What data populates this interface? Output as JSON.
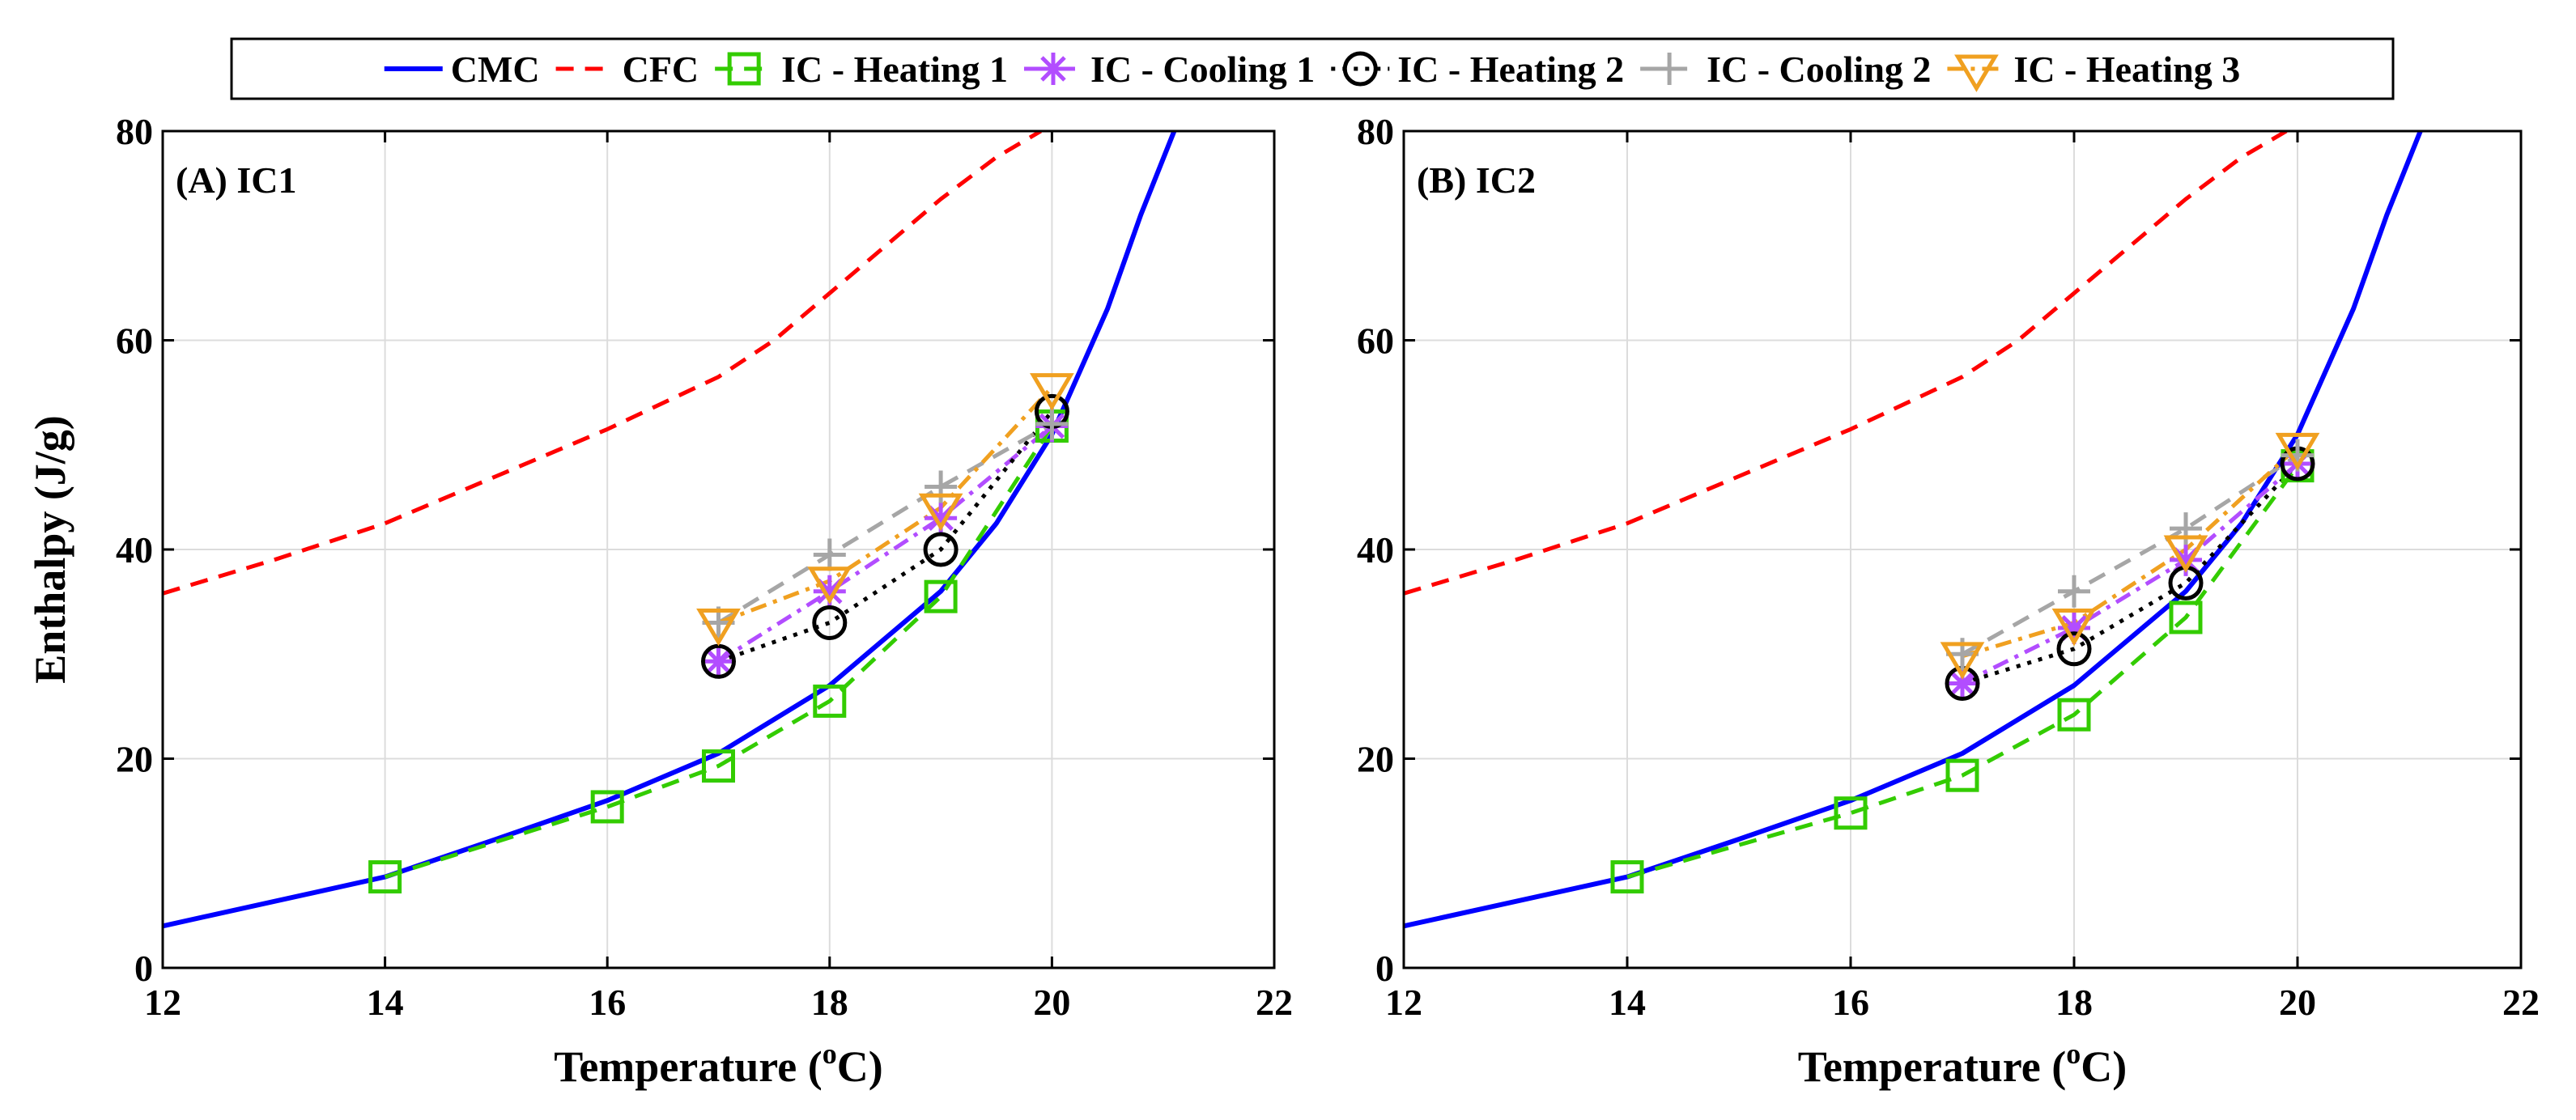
{
  "figure": {
    "legend": {
      "placement": "top-center",
      "entries": [
        {
          "name": "CMC",
          "color": "#0000ff",
          "dash": "solid",
          "marker": "none"
        },
        {
          "name": "CFC",
          "color": "#ff0000",
          "dash": "dashed",
          "marker": "none"
        },
        {
          "name": "IC - Heating 1",
          "color": "#33cc00",
          "dash": "dashed",
          "marker": "square"
        },
        {
          "name": "IC -  Cooling 1",
          "color": "#b24dff",
          "dash": "dashdot",
          "marker": "star"
        },
        {
          "name": "IC - Heating 2",
          "color": "#000000",
          "dash": "dotted",
          "marker": "circle"
        },
        {
          "name": "IC - Cooling 2",
          "color": "#a6a6a6",
          "dash": "dashed",
          "marker": "plus"
        },
        {
          "name": "IC - Heating 3",
          "color": "#f0a020",
          "dash": "dashdot",
          "marker": "triangle-down"
        }
      ]
    }
  },
  "chart_data": [
    {
      "type": "line",
      "title": "(A) IC1",
      "xlabel": "Temperature (",
      "xlabel_sup": "o",
      "xlabel_end": "C)",
      "ylabel": "Enthalpy (J/g)",
      "xlim": [
        12,
        22
      ],
      "ylim": [
        0,
        80
      ],
      "xticks": [
        12,
        14,
        16,
        18,
        20,
        22
      ],
      "yticks": [
        0,
        20,
        40,
        60,
        80
      ],
      "grid": true,
      "series": [
        {
          "name": "CMC",
          "x": [
            12,
            14,
            15,
            16,
            17,
            18,
            19,
            19.5,
            20,
            20.5,
            20.8,
            21.1
          ],
          "y": [
            4,
            8.7,
            12.3,
            16,
            20.5,
            27,
            36,
            42.5,
            51,
            63,
            72,
            80
          ]
        },
        {
          "name": "CFC",
          "x": [
            12,
            13,
            14,
            15,
            16,
            17,
            17.5,
            18,
            18.5,
            19,
            19.5,
            19.9
          ],
          "y": [
            35.8,
            39,
            42.5,
            47,
            51.5,
            56.5,
            60,
            64.5,
            69,
            73.5,
            77.5,
            80
          ]
        },
        {
          "name": "IC - Heating 1",
          "x": [
            14,
            16,
            17,
            18,
            19,
            20
          ],
          "y": [
            8.7,
            15.4,
            19.3,
            25.5,
            35.5,
            51.8
          ]
        },
        {
          "name": "IC -  Cooling 1",
          "x": [
            17,
            18,
            19,
            20
          ],
          "y": [
            29.3,
            36,
            43,
            51.8
          ]
        },
        {
          "name": "IC - Heating 2",
          "x": [
            17,
            18,
            19,
            20
          ],
          "y": [
            29.3,
            33,
            40,
            53.2
          ]
        },
        {
          "name": "IC - Cooling 2",
          "x": [
            17,
            18,
            19,
            20
          ],
          "y": [
            33,
            39.5,
            46,
            52
          ]
        },
        {
          "name": "IC - Heating 3",
          "x": [
            17,
            18,
            19,
            20
          ],
          "y": [
            33,
            37,
            44,
            55.5
          ]
        }
      ]
    },
    {
      "type": "line",
      "title": "(B) IC2",
      "xlabel": "Temperature (",
      "xlabel_sup": "o",
      "xlabel_end": "C)",
      "ylabel": "",
      "xlim": [
        12,
        22
      ],
      "ylim": [
        0,
        80
      ],
      "xticks": [
        12,
        14,
        16,
        18,
        20,
        22
      ],
      "yticks": [
        0,
        20,
        40,
        60,
        80
      ],
      "grid": true,
      "series": [
        {
          "name": "CMC",
          "x": [
            12,
            14,
            15,
            16,
            17,
            18,
            19,
            19.5,
            20,
            20.5,
            20.8,
            21.1
          ],
          "y": [
            4,
            8.7,
            12.3,
            16,
            20.5,
            27,
            36,
            42.5,
            51,
            63,
            72,
            80
          ]
        },
        {
          "name": "CFC",
          "x": [
            12,
            13,
            14,
            15,
            16,
            17,
            17.5,
            18,
            18.5,
            19,
            19.5,
            19.9
          ],
          "y": [
            35.8,
            39,
            42.5,
            47,
            51.5,
            56.5,
            60,
            64.5,
            69,
            73.5,
            77.5,
            80
          ]
        },
        {
          "name": "IC - Heating 1",
          "x": [
            14,
            16,
            17,
            18,
            19,
            20
          ],
          "y": [
            8.7,
            14.8,
            18.4,
            24.2,
            33.5,
            48
          ]
        },
        {
          "name": "IC -  Cooling 1",
          "x": [
            17,
            18,
            19,
            20
          ],
          "y": [
            27.2,
            32.5,
            39,
            48.2
          ]
        },
        {
          "name": "IC - Heating 2",
          "x": [
            17,
            18,
            19,
            20
          ],
          "y": [
            27.2,
            30.5,
            36.8,
            48.2
          ]
        },
        {
          "name": "IC - Cooling 2",
          "x": [
            17,
            18,
            19,
            20
          ],
          "y": [
            30,
            36,
            42,
            49
          ]
        },
        {
          "name": "IC - Heating 3",
          "x": [
            17,
            18,
            19,
            20
          ],
          "y": [
            29.8,
            33,
            40,
            49.8
          ]
        }
      ]
    }
  ]
}
